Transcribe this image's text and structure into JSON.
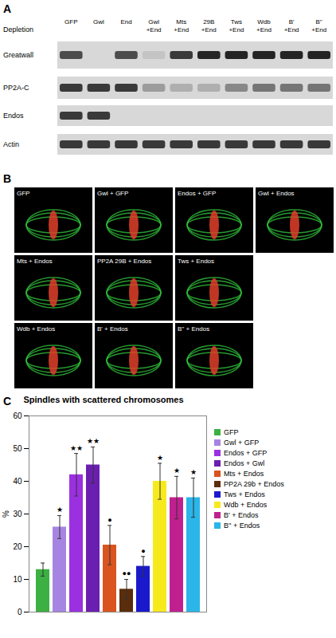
{
  "chart_data": {
    "type": "bar",
    "title": "Spindles with scattered chromosomes",
    "y_label": "%",
    "categories": [
      "GFP",
      "Gwl + GFP",
      "Endos + GFP",
      "Endos + Gwl",
      "Mts + Endos",
      "PP2A 29b + Endos",
      "Tws + Endos",
      "Wdb + Endos",
      "B' + Endos",
      "B'' + Endos"
    ],
    "values": [
      13,
      26,
      42,
      45,
      20.5,
      7,
      14,
      40,
      35,
      35
    ],
    "errors": [
      2,
      3.5,
      6.5,
      5.5,
      6,
      3,
      3,
      5.5,
      6.5,
      6
    ],
    "annotations": [
      null,
      "★",
      "★★",
      "★★",
      "●",
      "●●",
      "●",
      "★",
      "★",
      "★"
    ],
    "colors": [
      "#3cb043",
      "#a685e2",
      "#9b30e0",
      "#6a1fb0",
      "#d9541e",
      "#5a2d0c",
      "#1a1acc",
      "#f7ea1c",
      "#c0208f",
      "#2bb5e8"
    ],
    "ylim": [
      0,
      60
    ],
    "yticks": [
      0,
      10,
      20,
      30,
      40,
      50,
      60
    ],
    "grid": false,
    "legend": "right",
    "tick_labels": "y"
  },
  "figure": {
    "panel_A": {
      "label": "A",
      "row_label": "Depletion",
      "lanes": [
        "GFP",
        "Gwl",
        "End",
        "Gwl +End",
        "Mts +End",
        "29B +End",
        "Tws +End",
        "Wdb +End",
        "B' +End",
        "B'' +End"
      ],
      "blots": [
        "Greatwall",
        "PP2A-C",
        "Endos",
        "Actin"
      ],
      "bands": [
        [
          0.7,
          0,
          0.7,
          0.1,
          0.8,
          0.9,
          0.9,
          0.9,
          0.9,
          0.9
        ],
        [
          0.8,
          0.8,
          0.8,
          0.3,
          0.2,
          0.2,
          0.4,
          0.5,
          0.5,
          0.5
        ],
        [
          0.8,
          0.8,
          0,
          0,
          0,
          0,
          0,
          0,
          0,
          0
        ],
        [
          0.8,
          0.8,
          0.8,
          0.8,
          0.8,
          0.8,
          0.8,
          0.8,
          0.8,
          0.8
        ]
      ]
    },
    "panel_B": {
      "label": "B",
      "images": [
        "GFP",
        "Gwl + GFP",
        "Endos + GFP",
        "Gwl + Endos",
        "Mts + Endos",
        "PP2A 29B + Endos",
        "Tws + Endos",
        "Wdb + Endos",
        "B' + Endos",
        "B'' + Endos"
      ]
    },
    "panel_C": {
      "label": "C"
    }
  }
}
